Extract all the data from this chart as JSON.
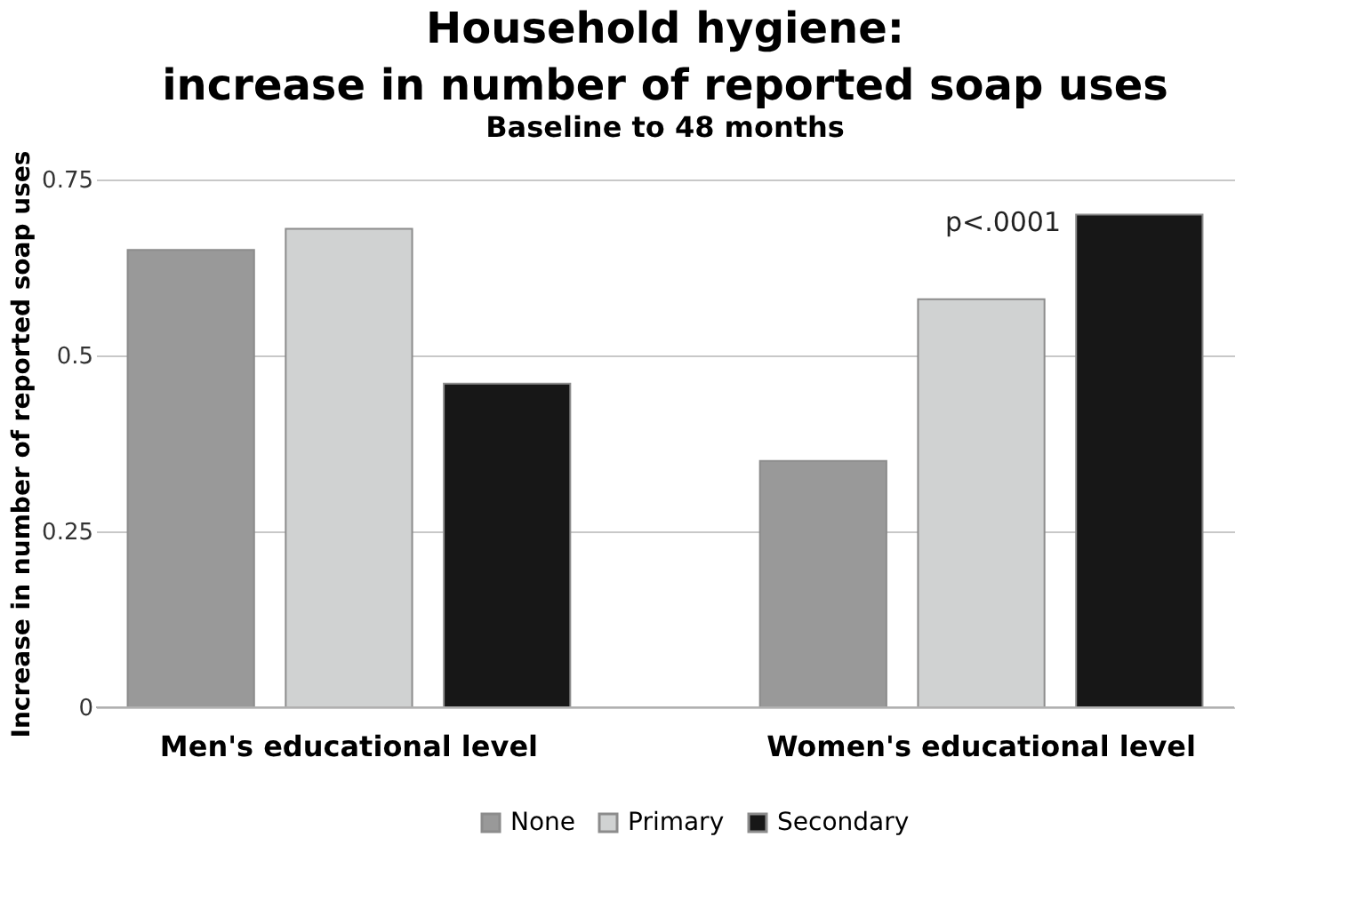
{
  "chart_data": {
    "type": "bar",
    "title": "Household hygiene:\nincrease in number of reported soap uses",
    "subtitle": "Baseline to 48 months",
    "ylabel": "Increase in number of reported soap uses",
    "categories": [
      "Men's educational level",
      "Women's educational level"
    ],
    "series": [
      {
        "name": "None",
        "color": "#999999",
        "values": [
          0.65,
          0.35
        ]
      },
      {
        "name": "Primary",
        "color": "#d0d2d2",
        "values": [
          0.68,
          0.58
        ]
      },
      {
        "name": "Secondary",
        "color": "#171717",
        "values": [
          0.46,
          0.7
        ]
      }
    ],
    "ylim": [
      0,
      0.75
    ],
    "yticks": [
      0,
      0.25,
      0.5,
      0.75
    ],
    "grid": "y",
    "legend": "bottom",
    "annotations": [
      "p<.0001"
    ]
  }
}
